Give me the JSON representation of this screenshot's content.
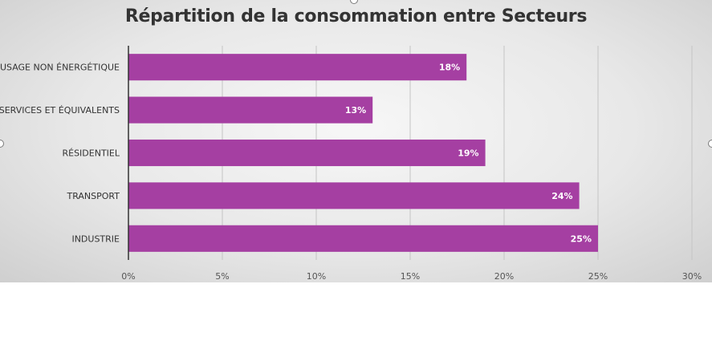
{
  "chart_data": {
    "type": "bar",
    "orientation": "horizontal",
    "title": "Répartition de la consommation entre Secteurs",
    "categories": [
      "USAGE NON ÉNERGÉTIQUE",
      "SERVICES ET ÉQUIVALENTS",
      "RÉSIDENTIEL",
      "TRANSPORT",
      "INDUSTRIE"
    ],
    "values": [
      18,
      13,
      19,
      24,
      25
    ],
    "value_labels": [
      "18%",
      "13%",
      "19%",
      "24%",
      "25%"
    ],
    "xlim": [
      0,
      30
    ],
    "x_ticks": [
      0,
      5,
      10,
      15,
      20,
      25,
      30
    ],
    "x_tick_labels": [
      "0%",
      "5%",
      "10%",
      "15%",
      "20%",
      "25%",
      "30%"
    ],
    "grid": true,
    "legend": "none",
    "bar_color": "#a53fa2"
  }
}
